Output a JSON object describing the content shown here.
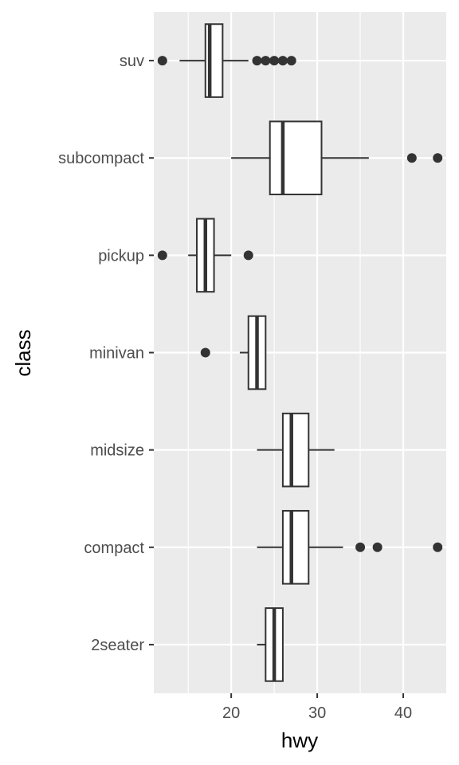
{
  "chart_data": {
    "type": "boxplot",
    "orientation": "horizontal",
    "xlabel": "hwy",
    "ylabel": "class",
    "xlim": [
      11,
      45
    ],
    "x_ticks": [
      20,
      30,
      40
    ],
    "x_minor_ticks": [
      15,
      25,
      35
    ],
    "grid": true,
    "colors": {
      "panel": "#ebebeb",
      "grid": "#ffffff",
      "box_fill": "#ffffff",
      "box_stroke": "#333333",
      "outlier": "#333333",
      "tick_text": "#4d4d4d"
    },
    "categories": [
      "2seater",
      "compact",
      "midsize",
      "minivan",
      "pickup",
      "subcompact",
      "suv"
    ],
    "boxes": [
      {
        "category": "2seater",
        "whisker_low": 23,
        "q1": 24,
        "median": 25,
        "q3": 26,
        "whisker_high": 26,
        "outliers": []
      },
      {
        "category": "compact",
        "whisker_low": 23,
        "q1": 26,
        "median": 27,
        "q3": 29,
        "whisker_high": 33,
        "outliers": [
          35,
          37,
          44
        ]
      },
      {
        "category": "midsize",
        "whisker_low": 23,
        "q1": 26,
        "median": 27,
        "q3": 29,
        "whisker_high": 32,
        "outliers": []
      },
      {
        "category": "minivan",
        "whisker_low": 21,
        "q1": 22,
        "median": 23,
        "q3": 24,
        "whisker_high": 24,
        "outliers": [
          17
        ]
      },
      {
        "category": "pickup",
        "whisker_low": 15,
        "q1": 16,
        "median": 17,
        "q3": 18,
        "whisker_high": 20,
        "outliers": [
          12,
          22
        ]
      },
      {
        "category": "subcompact",
        "whisker_low": 20,
        "q1": 24.5,
        "median": 26,
        "q3": 30.5,
        "whisker_high": 36,
        "outliers": [
          41,
          44
        ]
      },
      {
        "category": "suv",
        "whisker_low": 14,
        "q1": 17,
        "median": 17.5,
        "q3": 19,
        "whisker_high": 22,
        "outliers": [
          12,
          23,
          24,
          25,
          26,
          27
        ]
      }
    ]
  }
}
